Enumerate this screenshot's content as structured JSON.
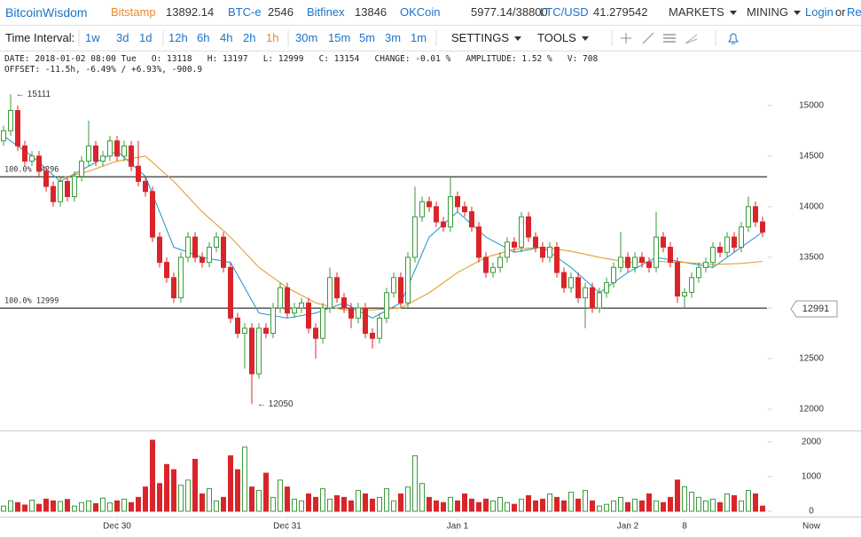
{
  "header": {
    "brand": "BitcoinWisdom",
    "exchanges": [
      {
        "name": "Bitstamp",
        "price": 13892.14,
        "color": "#e8892b"
      },
      {
        "name": "BTC-e",
        "price": 2546,
        "color": "#1a73c9"
      },
      {
        "name": "Bitfinex",
        "price": 13846,
        "color": "#1a73c9"
      },
      {
        "name": "OKCoin",
        "price": "5977.14/38800",
        "color": "#1a73c9"
      },
      {
        "name": "LTC/USD",
        "price": 41.279542,
        "color": "#1a73c9"
      }
    ],
    "menus": [
      "MARKETS",
      "MINING"
    ],
    "login": "Login",
    "or": "or",
    "register": "Re"
  },
  "toolbar": {
    "label": "Time Interval:",
    "intervals": [
      "1w",
      "3d",
      "1d",
      "12h",
      "6h",
      "4h",
      "2h",
      "1h",
      "30m",
      "15m",
      "5m",
      "3m",
      "1m"
    ],
    "active_interval_index": 7,
    "settings": "SETTINGS",
    "tools": "TOOLS"
  },
  "info": {
    "line1": "DATE: 2018-01-02 08:00 Tue   O: 13118   H: 13197   L: 12999   C: 13154   CHANGE: -0.01 %   AMPLITUDE: 1.52 %   V: 708",
    "line2": "OFFSET: -11.5h, -6.49% / +6.93%, -900.9"
  },
  "chart_data": {
    "type": "candlestick",
    "open": [
      14650,
      14750,
      14950,
      14600,
      14450,
      14500,
      14350,
      14200,
      14050,
      14250,
      14100,
      14300,
      14450,
      14600,
      14450,
      14500,
      14650,
      14500,
      14600,
      14400,
      14250,
      14150,
      13700,
      13450,
      13300,
      13100,
      13500,
      13700,
      13500,
      13450,
      13600,
      13700,
      13400,
      12900,
      12750,
      12800,
      12350,
      12800,
      12750,
      13000,
      13200,
      12950,
      13000,
      13050,
      12800,
      12700,
      13000,
      13300,
      13100,
      13000,
      12900,
      13000,
      12750,
      12700,
      12900,
      13150,
      13300,
      13050,
      13500,
      13900,
      14050,
      14000,
      13850,
      13800,
      14100,
      14000,
      13950,
      13800,
      13500,
      13350,
      13400,
      13500,
      13650,
      13600,
      13900,
      13700,
      13600,
      13500,
      13600,
      13350,
      13200,
      13300,
      13100,
      13200,
      13000,
      13150,
      13250,
      13400,
      13500,
      13400,
      13500,
      13450,
      13400,
      13700,
      13600,
      13450,
      13118,
      13154,
      13300,
      13400,
      13450,
      13600,
      13550,
      13700,
      13600,
      13800,
      14000,
      13850
    ],
    "high": [
      14800,
      15111,
      15000,
      14650,
      14550,
      14550,
      14400,
      14250,
      14300,
      14300,
      14350,
      14500,
      14850,
      14650,
      14550,
      14700,
      14700,
      14650,
      14650,
      14650,
      14300,
      14200,
      13750,
      13500,
      13350,
      13550,
      13750,
      13750,
      13550,
      13650,
      13750,
      13750,
      13450,
      12950,
      12850,
      12850,
      12850,
      12850,
      13050,
      13250,
      13250,
      13050,
      13100,
      13100,
      12850,
      13050,
      13400,
      13350,
      13150,
      13050,
      13050,
      13050,
      12800,
      12950,
      13200,
      13350,
      13350,
      13550,
      14200,
      14100,
      14100,
      14050,
      13900,
      14300,
      14150,
      14050,
      14000,
      13850,
      13550,
      13450,
      13550,
      13700,
      13700,
      13950,
      13950,
      13750,
      13650,
      13650,
      13650,
      13400,
      13350,
      13350,
      13250,
      13250,
      13200,
      13300,
      13450,
      13750,
      13550,
      13550,
      13550,
      13500,
      13950,
      13750,
      13650,
      13500,
      13197,
      13350,
      13450,
      13500,
      13650,
      13650,
      13750,
      13750,
      13850,
      14100,
      14050,
      13900
    ],
    "low": [
      14600,
      14700,
      14550,
      14400,
      14400,
      14300,
      14150,
      14000,
      14000,
      14050,
      14050,
      14250,
      14400,
      14400,
      14400,
      14450,
      14450,
      14450,
      14350,
      14200,
      14100,
      13650,
      13400,
      13250,
      13050,
      13050,
      13450,
      13450,
      13400,
      13400,
      13550,
      13350,
      12850,
      12700,
      12400,
      12050,
      12300,
      12700,
      12700,
      12950,
      12900,
      12900,
      12950,
      12750,
      12500,
      12650,
      12950,
      13050,
      12950,
      12800,
      12850,
      12700,
      12600,
      12650,
      12850,
      13100,
      13000,
      13000,
      13450,
      13850,
      13950,
      13800,
      13750,
      13750,
      13950,
      13900,
      13750,
      13450,
      13300,
      13300,
      13350,
      13450,
      13550,
      13550,
      13650,
      13550,
      13450,
      13450,
      13300,
      13150,
      13150,
      13050,
      12800,
      12950,
      12950,
      13100,
      13200,
      13350,
      13350,
      13350,
      13400,
      13350,
      13350,
      13550,
      13400,
      13050,
      12999,
      13100,
      13250,
      13350,
      13400,
      13500,
      13500,
      13550,
      13550,
      13750,
      13800,
      13700
    ],
    "close": [
      14750,
      14950,
      14600,
      14450,
      14500,
      14350,
      14200,
      14050,
      14250,
      14100,
      14300,
      14450,
      14600,
      14450,
      14500,
      14650,
      14500,
      14600,
      14400,
      14250,
      14150,
      13700,
      13450,
      13300,
      13100,
      13500,
      13700,
      13500,
      13450,
      13600,
      13700,
      13400,
      12900,
      12750,
      12800,
      12350,
      12800,
      12750,
      13000,
      13200,
      12950,
      13000,
      13050,
      12800,
      12700,
      13000,
      13300,
      13100,
      13000,
      12900,
      13000,
      12750,
      12700,
      12900,
      13150,
      13300,
      13050,
      13500,
      13900,
      14050,
      14000,
      13850,
      13800,
      14100,
      14000,
      13950,
      13800,
      13500,
      13350,
      13400,
      13500,
      13650,
      13600,
      13900,
      13700,
      13600,
      13500,
      13600,
      13350,
      13200,
      13300,
      13100,
      13200,
      13000,
      13150,
      13250,
      13400,
      13500,
      13400,
      13500,
      13450,
      13400,
      13700,
      13600,
      13450,
      13118,
      13154,
      13300,
      13400,
      13450,
      13600,
      13550,
      13700,
      13600,
      13800,
      14000,
      13850,
      13750
    ],
    "volume": [
      150,
      300,
      250,
      180,
      320,
      200,
      350,
      300,
      280,
      340,
      150,
      250,
      300,
      220,
      380,
      240,
      300,
      350,
      250,
      400,
      700,
      2050,
      800,
      1350,
      1200,
      750,
      900,
      1500,
      500,
      650,
      300,
      400,
      1600,
      1200,
      1850,
      700,
      600,
      1100,
      400,
      900,
      700,
      350,
      300,
      500,
      400,
      650,
      350,
      450,
      400,
      300,
      600,
      500,
      350,
      400,
      650,
      300,
      500,
      700,
      1600,
      800,
      400,
      300,
      250,
      400,
      300,
      500,
      350,
      250,
      350,
      300,
      400,
      250,
      200,
      350,
      450,
      300,
      350,
      500,
      400,
      300,
      550,
      350,
      600,
      300,
      150,
      200,
      300,
      400,
      250,
      350,
      300,
      500,
      300,
      250,
      400,
      900,
      708,
      550,
      400,
      300,
      350,
      250,
      500,
      450,
      300,
      600,
      500,
      150
    ],
    "up_color": "#3a9a3a",
    "down_color": "#d9252a",
    "ma_x": [
      0,
      4,
      8,
      12,
      16,
      20,
      24,
      28,
      32,
      36,
      40,
      44,
      48,
      52,
      56,
      60,
      64,
      68,
      72,
      76,
      80,
      84,
      88,
      92,
      96,
      100,
      104,
      107
    ],
    "ma_lines": [
      {
        "color": "#3399cc",
        "values": [
          14700,
          14500,
          14250,
          14400,
          14550,
          14300,
          13600,
          13500,
          13450,
          12950,
          12900,
          12950,
          13050,
          12900,
          13050,
          13700,
          13950,
          13700,
          13550,
          13600,
          13400,
          13150,
          13350,
          13500,
          13450,
          13400,
          13600,
          13750
        ]
      },
      {
        "color": "#e0a030",
        "values": [
          null,
          null,
          14280,
          14350,
          14450,
          14500,
          14250,
          13950,
          13700,
          13400,
          13200,
          13050,
          12980,
          12980,
          13000,
          13150,
          13350,
          13500,
          13580,
          13600,
          13560,
          13500,
          13450,
          13460,
          13450,
          13430,
          13440,
          13460
        ]
      }
    ],
    "ylim": [
      11790,
      15270
    ],
    "yticks": [
      12000,
      12500,
      13000,
      13500,
      14000,
      14500,
      15000
    ],
    "vlim": [
      0,
      2280
    ],
    "vticks": [
      0,
      1000,
      2000
    ],
    "levels": [
      {
        "value": 14296,
        "label": "100.0% 14296"
      },
      {
        "value": 12999,
        "label": "100.0% 12999"
      }
    ],
    "annotations": [
      {
        "index": 1,
        "value": 15111,
        "label": "← 15111"
      },
      {
        "index": 35,
        "value": 12050,
        "label": "← 12050"
      }
    ],
    "price_marker": 12991,
    "time_labels": [
      "Dec 30",
      "Dec 31",
      "Jan 1",
      "Jan 2",
      "8"
    ],
    "time_label_index": [
      16,
      40,
      64,
      88,
      96
    ],
    "now_label": "Now"
  }
}
